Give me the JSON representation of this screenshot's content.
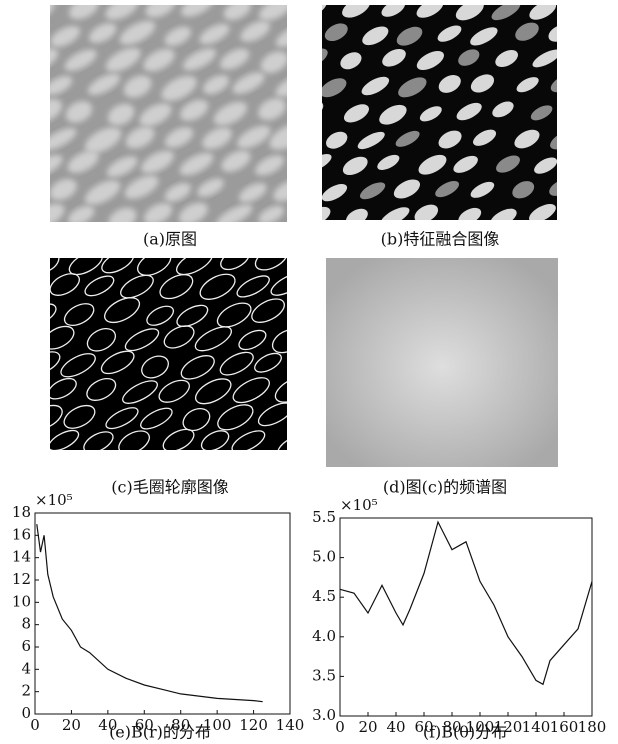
{
  "panels": [
    {
      "caption": "(a)原图"
    },
    {
      "caption": "(b)特征融合图像"
    },
    {
      "caption": "(c)毛圈轮廓图像"
    },
    {
      "caption": "(d)图(c)的频谱图"
    }
  ],
  "chart_data": [
    {
      "type": "line",
      "caption": "(e)B(r)的分布",
      "y_scale_label": "×10⁵",
      "color": "#111111",
      "x": [
        1,
        3,
        5,
        7,
        10,
        15,
        20,
        25,
        30,
        40,
        50,
        60,
        70,
        80,
        90,
        100,
        110,
        120,
        125
      ],
      "values": [
        17,
        14.5,
        16,
        12.5,
        10.5,
        8.5,
        7.5,
        6,
        5.5,
        4,
        3.2,
        2.6,
        2.2,
        1.8,
        1.6,
        1.4,
        1.3,
        1.2,
        1.1
      ],
      "xlim": [
        0,
        140
      ],
      "xticks": [
        0,
        20,
        40,
        60,
        80,
        100,
        120,
        140
      ],
      "ylim": [
        0,
        18
      ],
      "yticks": [
        0,
        2,
        4,
        6,
        8,
        10,
        12,
        14,
        16,
        18
      ]
    },
    {
      "type": "line",
      "caption": "(f)B(θ)分布",
      "y_scale_label": "×10⁵",
      "color": "#111111",
      "x": [
        0,
        10,
        20,
        30,
        40,
        45,
        50,
        60,
        70,
        80,
        90,
        100,
        110,
        120,
        130,
        140,
        145,
        150,
        160,
        170,
        180
      ],
      "values": [
        4.6,
        4.55,
        4.3,
        4.65,
        4.3,
        4.15,
        4.35,
        4.8,
        5.45,
        5.1,
        5.2,
        4.7,
        4.4,
        4.0,
        3.75,
        3.45,
        3.4,
        3.7,
        3.9,
        4.1,
        4.7
      ],
      "xlim": [
        0,
        180
      ],
      "xticks": [
        0,
        20,
        40,
        60,
        80,
        100,
        120,
        140,
        160,
        180
      ],
      "ylim": [
        3,
        5.5
      ],
      "yticks": [
        {
          "value": 3,
          "label": "3.0"
        },
        {
          "value": 3.5,
          "label": "3.5"
        },
        {
          "value": 4,
          "label": "4.0"
        },
        {
          "value": 4.5,
          "label": "4.5"
        },
        {
          "value": 5,
          "label": "5.0"
        },
        {
          "value": 5.5,
          "label": "5.5"
        }
      ]
    }
  ]
}
